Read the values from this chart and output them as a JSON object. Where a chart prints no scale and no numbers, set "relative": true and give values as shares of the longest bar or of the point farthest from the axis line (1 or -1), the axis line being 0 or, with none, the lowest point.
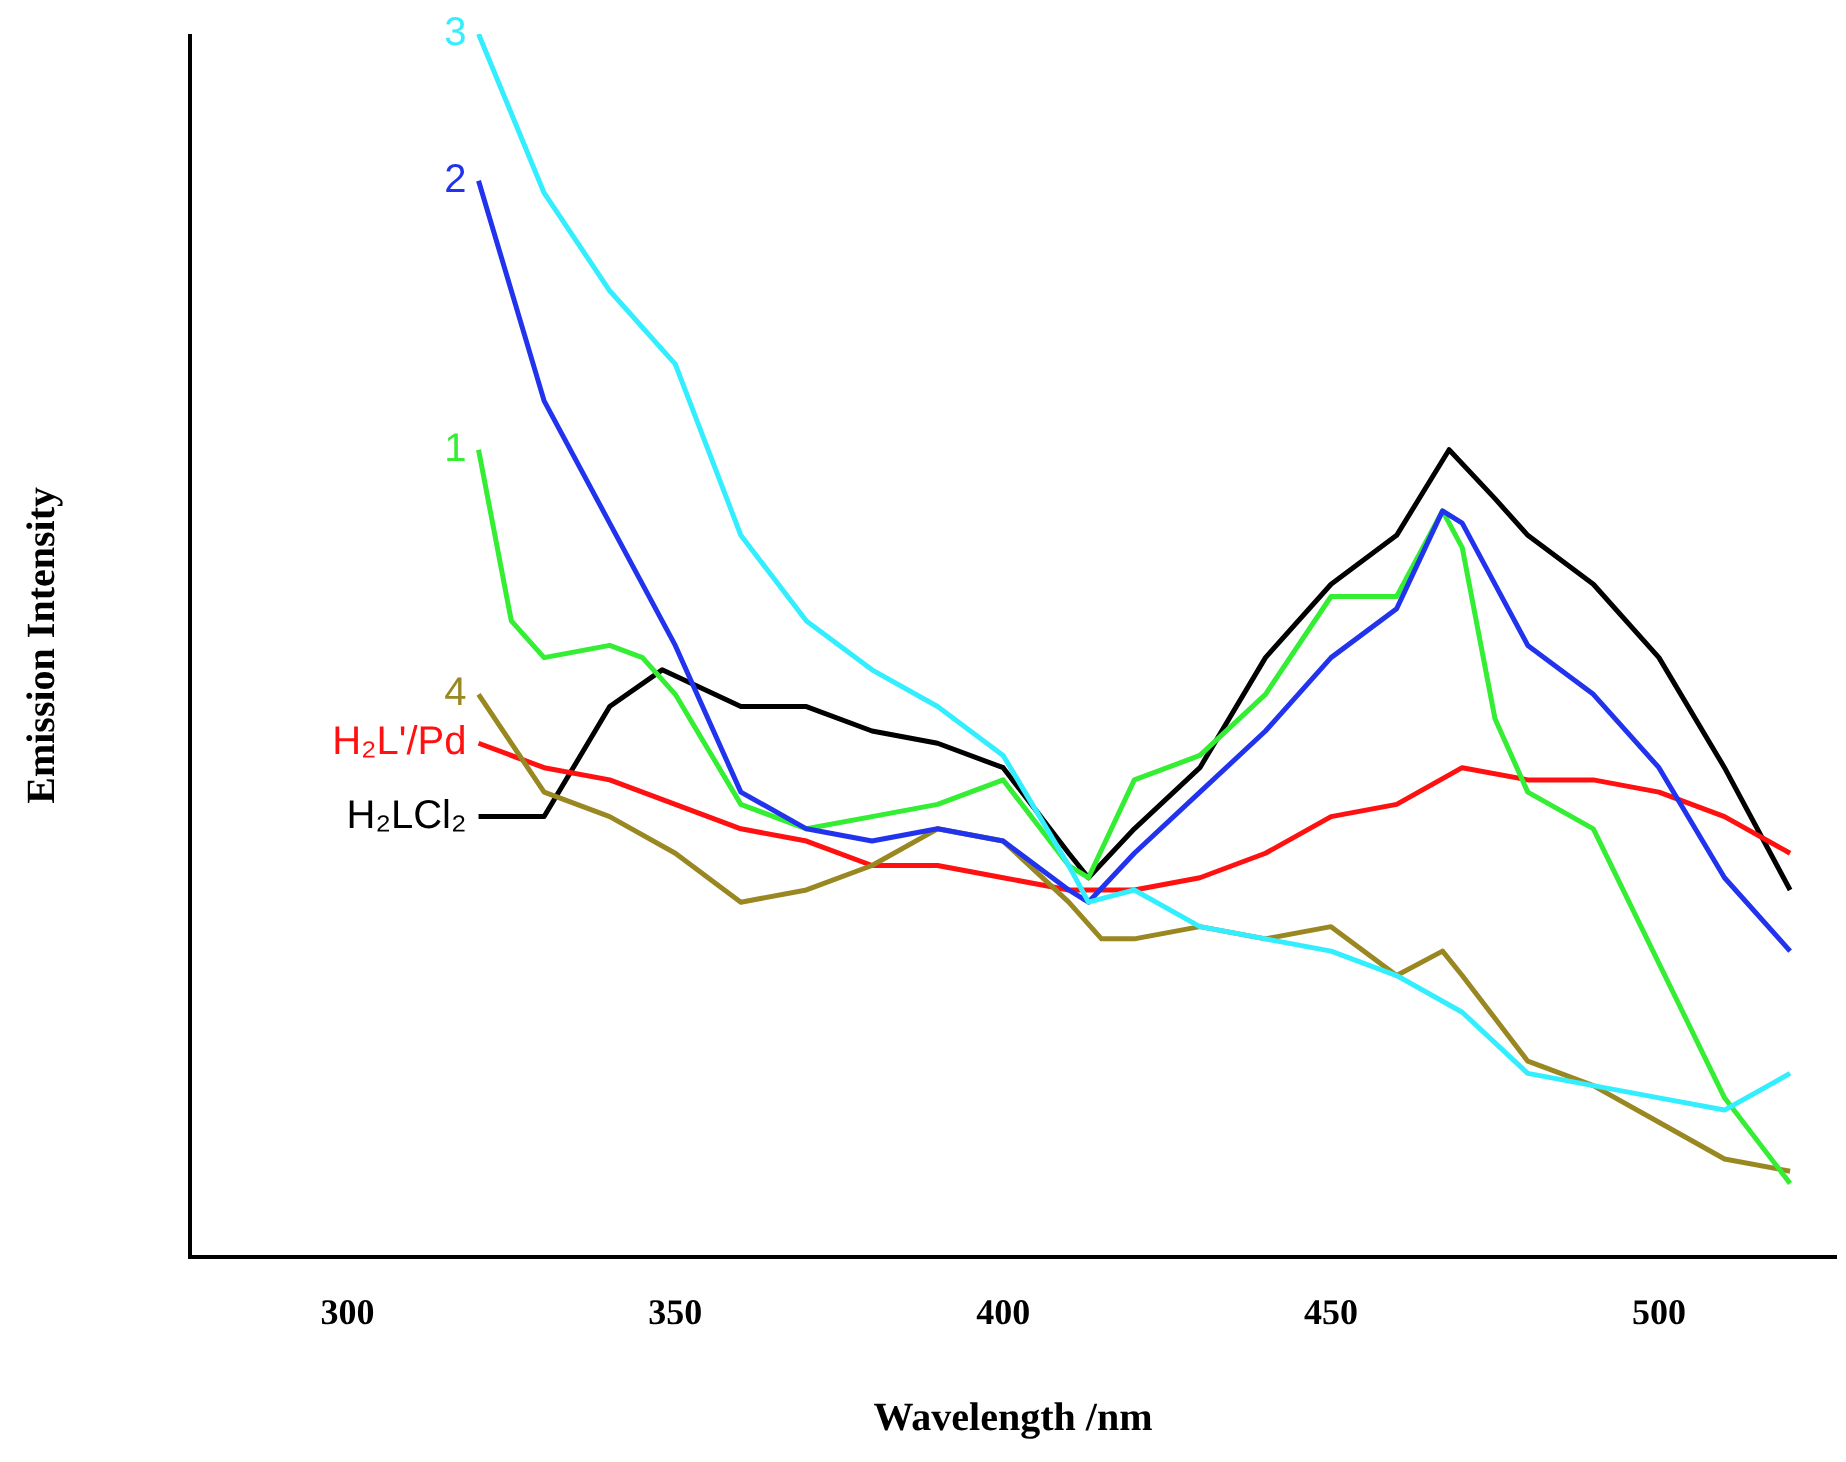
{
  "chart_data": {
    "type": "line",
    "relative": true,
    "xlabel": "Wavelength /nm",
    "ylabel": "Emission Intensity",
    "xlim": [
      276,
      527
    ],
    "xticks": [
      300,
      350,
      400,
      450,
      500
    ],
    "grid": false,
    "legend": false,
    "marker": "none",
    "line_style": "solid",
    "series": [
      {
        "name": "3",
        "color": "#33eeff",
        "x": [
          320,
          330,
          340,
          350,
          360,
          370,
          380,
          390,
          400,
          410,
          413,
          420,
          430,
          440,
          450,
          460,
          470,
          480,
          490,
          500,
          510,
          520
        ],
        "values": [
          1.0,
          0.87,
          0.79,
          0.73,
          0.59,
          0.52,
          0.48,
          0.45,
          0.41,
          0.32,
          0.29,
          0.3,
          0.27,
          0.26,
          0.25,
          0.23,
          0.2,
          0.15,
          0.14,
          0.13,
          0.12,
          0.15
        ]
      },
      {
        "name": "2",
        "color": "#2233ee",
        "x": [
          320,
          330,
          340,
          350,
          360,
          370,
          380,
          390,
          400,
          410,
          413,
          420,
          430,
          440,
          450,
          460,
          467,
          470,
          480,
          490,
          500,
          510,
          520
        ],
        "values": [
          0.88,
          0.7,
          0.6,
          0.5,
          0.38,
          0.35,
          0.34,
          0.35,
          0.34,
          0.3,
          0.29,
          0.33,
          0.38,
          0.43,
          0.49,
          0.53,
          0.61,
          0.6,
          0.5,
          0.46,
          0.4,
          0.31,
          0.25
        ]
      },
      {
        "name": "1",
        "color": "#33ee33",
        "x": [
          320,
          325,
          330,
          340,
          345,
          350,
          360,
          370,
          380,
          390,
          400,
          410,
          413,
          420,
          430,
          440,
          450,
          460,
          467,
          470,
          475,
          480,
          490,
          500,
          510,
          520
        ],
        "values": [
          0.66,
          0.52,
          0.49,
          0.5,
          0.49,
          0.46,
          0.37,
          0.35,
          0.36,
          0.37,
          0.39,
          0.32,
          0.31,
          0.39,
          0.41,
          0.46,
          0.54,
          0.54,
          0.61,
          0.58,
          0.44,
          0.38,
          0.35,
          0.24,
          0.13,
          0.06
        ]
      },
      {
        "name": "4",
        "color": "#998822",
        "x": [
          320,
          330,
          340,
          350,
          360,
          370,
          380,
          390,
          400,
          410,
          415,
          420,
          430,
          440,
          450,
          460,
          467,
          470,
          480,
          490,
          500,
          510,
          520
        ],
        "values": [
          0.46,
          0.38,
          0.36,
          0.33,
          0.29,
          0.3,
          0.32,
          0.35,
          0.34,
          0.29,
          0.26,
          0.26,
          0.27,
          0.26,
          0.27,
          0.23,
          0.25,
          0.23,
          0.16,
          0.14,
          0.11,
          0.08,
          0.07
        ]
      },
      {
        "name": "H₂L'/Pd",
        "color": "#ff1111",
        "x": [
          320,
          330,
          340,
          350,
          360,
          370,
          380,
          390,
          400,
          410,
          420,
          430,
          440,
          450,
          460,
          470,
          480,
          490,
          500,
          510,
          520
        ],
        "values": [
          0.42,
          0.4,
          0.39,
          0.37,
          0.35,
          0.34,
          0.32,
          0.32,
          0.31,
          0.3,
          0.3,
          0.31,
          0.33,
          0.36,
          0.37,
          0.4,
          0.39,
          0.39,
          0.38,
          0.36,
          0.33
        ]
      },
      {
        "name": "H₂LCl₂",
        "color": "#000000",
        "x": [
          320,
          330,
          340,
          348,
          360,
          370,
          380,
          390,
          400,
          410,
          413,
          420,
          430,
          440,
          450,
          460,
          468,
          475,
          480,
          490,
          500,
          510,
          520
        ],
        "values": [
          0.36,
          0.36,
          0.45,
          0.48,
          0.45,
          0.45,
          0.43,
          0.42,
          0.4,
          0.33,
          0.31,
          0.35,
          0.4,
          0.49,
          0.55,
          0.59,
          0.66,
          0.62,
          0.59,
          0.55,
          0.49,
          0.4,
          0.3
        ]
      }
    ]
  }
}
